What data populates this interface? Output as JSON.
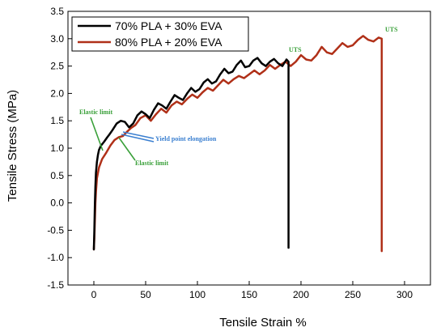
{
  "chart_data": {
    "type": "line",
    "title": "",
    "xlabel": "Tensile Strain %",
    "ylabel": "Tensile Stress (MPa)",
    "xlim": [
      -25,
      325
    ],
    "ylim": [
      -1.5,
      3.5
    ],
    "x_ticks": [
      0,
      50,
      100,
      150,
      200,
      250,
      300
    ],
    "y_ticks": [
      -1.5,
      -1.0,
      -0.5,
      0.0,
      0.5,
      1.0,
      1.5,
      2.0,
      2.5,
      3.0,
      3.5
    ],
    "x_tick_labels": [
      "0",
      "50",
      "100",
      "150",
      "200",
      "250",
      "300"
    ],
    "y_tick_labels": [
      "-1.5",
      "-1.0",
      "-0.5",
      "0.0",
      "0.5",
      "1.0",
      "1.5",
      "2.0",
      "2.5",
      "3.0",
      "3.5"
    ],
    "grid": false,
    "legend_position": "top-left",
    "series": [
      {
        "name": "70% PLA + 30% EVA",
        "color": "#000000",
        "x": [
          0,
          0.5,
          1,
          1.5,
          2,
          3,
          4,
          5,
          7,
          10,
          13,
          15,
          18,
          22,
          26,
          30,
          34,
          38,
          42,
          46,
          50,
          54,
          58,
          62,
          66,
          70,
          74,
          78,
          82,
          86,
          90,
          94,
          98,
          102,
          106,
          110,
          114,
          118,
          122,
          126,
          130,
          134,
          138,
          142,
          146,
          150,
          154,
          158,
          162,
          166,
          170,
          174,
          178,
          182,
          186,
          188,
          188
        ],
        "y": [
          -0.85,
          -0.5,
          0.0,
          0.3,
          0.55,
          0.75,
          0.88,
          0.97,
          1.05,
          1.12,
          1.2,
          1.25,
          1.33,
          1.45,
          1.5,
          1.48,
          1.38,
          1.45,
          1.6,
          1.67,
          1.62,
          1.55,
          1.7,
          1.82,
          1.78,
          1.72,
          1.85,
          1.97,
          1.92,
          1.88,
          2.0,
          2.1,
          2.03,
          2.08,
          2.2,
          2.26,
          2.18,
          2.22,
          2.35,
          2.45,
          2.37,
          2.4,
          2.52,
          2.6,
          2.48,
          2.5,
          2.6,
          2.65,
          2.55,
          2.5,
          2.58,
          2.63,
          2.55,
          2.5,
          2.62,
          2.58,
          -0.82
        ]
      },
      {
        "name": "80% PLA + 20% EVA",
        "color": "#b03018",
        "x": [
          0,
          0.5,
          1,
          1.5,
          2,
          3,
          5,
          8,
          12,
          16,
          20,
          24,
          28,
          32,
          36,
          40,
          45,
          50,
          55,
          60,
          65,
          70,
          75,
          80,
          85,
          90,
          95,
          100,
          105,
          110,
          115,
          120,
          125,
          130,
          135,
          140,
          145,
          150,
          155,
          160,
          165,
          170,
          175,
          180,
          185,
          190,
          195,
          200,
          205,
          210,
          215,
          220,
          225,
          230,
          235,
          240,
          245,
          250,
          255,
          260,
          265,
          270,
          275,
          278,
          278
        ],
        "y": [
          -0.85,
          -0.65,
          -0.3,
          0.0,
          0.2,
          0.45,
          0.65,
          0.8,
          0.92,
          1.05,
          1.15,
          1.2,
          1.22,
          1.3,
          1.37,
          1.42,
          1.55,
          1.6,
          1.5,
          1.62,
          1.72,
          1.65,
          1.78,
          1.85,
          1.8,
          1.9,
          1.98,
          1.92,
          2.02,
          2.1,
          2.05,
          2.15,
          2.25,
          2.18,
          2.26,
          2.32,
          2.28,
          2.35,
          2.42,
          2.35,
          2.42,
          2.52,
          2.45,
          2.52,
          2.58,
          2.5,
          2.58,
          2.7,
          2.62,
          2.6,
          2.7,
          2.85,
          2.75,
          2.72,
          2.82,
          2.92,
          2.85,
          2.88,
          2.98,
          3.05,
          2.98,
          2.95,
          3.02,
          3.0,
          -0.88
        ]
      }
    ],
    "annotations": [
      {
        "id": "elastic-70",
        "text": "Elastic limit",
        "color": "#3aa03a"
      },
      {
        "id": "yield",
        "text": "Yield point elongation",
        "color": "#3a7fd0"
      },
      {
        "id": "elastic-80",
        "text": "Elastic limit",
        "color": "#3aa03a"
      },
      {
        "id": "uts-70",
        "text": "UTS",
        "color": "#3aa03a"
      },
      {
        "id": "uts-80",
        "text": "UTS",
        "color": "#3aa03a"
      }
    ]
  }
}
